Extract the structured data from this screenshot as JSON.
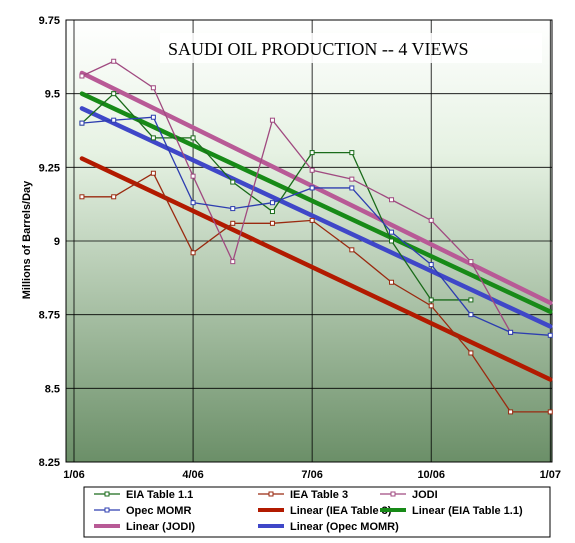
{
  "chart_data": {
    "type": "line",
    "title": "SAUDI OIL PRODUCTION -- 4 VIEWS",
    "ylabel": "Millions of Barrels/Day",
    "xlabel": "",
    "ylim": [
      8.25,
      9.75
    ],
    "yticks": [
      "8.25",
      "8.5",
      "8.75",
      "9",
      "9.25",
      "9.5",
      "9.75"
    ],
    "yticks_values": [
      8.25,
      8.5,
      8.75,
      9.0,
      9.25,
      9.5,
      9.75
    ],
    "xlim": [
      0,
      12
    ],
    "xticks": [
      "1/06",
      "4/06",
      "7/06",
      "10/06",
      "1/07"
    ],
    "xticks_values": [
      0,
      3,
      6,
      9,
      12
    ],
    "x": [
      0.2,
      1,
      2,
      3,
      4,
      5,
      6,
      7,
      8,
      9,
      10,
      11,
      12
    ],
    "grid": true,
    "legend_position": "bottom",
    "series": [
      {
        "name": "EIA Table 1.1",
        "kind": "data",
        "color": "#1a6b1a",
        "x": [
          0.2,
          1,
          2,
          3,
          4,
          5,
          6,
          7,
          8,
          9,
          10
        ],
        "values": [
          9.4,
          9.5,
          9.35,
          9.35,
          9.2,
          9.1,
          9.3,
          9.3,
          9.0,
          8.8,
          8.8
        ]
      },
      {
        "name": "IEA Table 3",
        "kind": "data",
        "color": "#9a2a10",
        "x": [
          0.2,
          1,
          2,
          3,
          4,
          5,
          6,
          7,
          8,
          9,
          10,
          11,
          12
        ],
        "values": [
          9.15,
          9.15,
          9.23,
          8.96,
          9.06,
          9.06,
          9.07,
          8.97,
          8.86,
          8.78,
          8.62,
          8.42,
          8.42
        ]
      },
      {
        "name": "JODI",
        "kind": "data",
        "color": "#a04a80",
        "x": [
          0.2,
          1,
          2,
          3,
          4,
          5,
          6,
          7,
          8,
          9,
          10,
          11
        ],
        "values": [
          9.56,
          9.61,
          9.52,
          9.22,
          8.93,
          9.41,
          9.24,
          9.21,
          9.14,
          9.07,
          8.93,
          8.69
        ]
      },
      {
        "name": "Opec MOMR",
        "kind": "data",
        "color": "#2d3db0",
        "x": [
          0.2,
          1,
          2,
          3,
          4,
          5,
          6,
          7,
          8,
          9,
          10,
          11,
          12
        ],
        "values": [
          9.4,
          9.41,
          9.42,
          9.13,
          9.11,
          9.13,
          9.18,
          9.18,
          9.03,
          8.92,
          8.75,
          8.69,
          8.68
        ]
      },
      {
        "name": "Linear (IEA Table 3)",
        "kind": "trend",
        "color": "#b21a00",
        "x": [
          0.2,
          12
        ],
        "values": [
          9.28,
          8.53
        ]
      },
      {
        "name": "Linear (EIA Table 1.1)",
        "kind": "trend",
        "color": "#178a17",
        "x": [
          0.2,
          12
        ],
        "values": [
          9.5,
          8.76
        ]
      },
      {
        "name": "Linear (JODI)",
        "kind": "trend",
        "color": "#b85a96",
        "x": [
          0.2,
          12
        ],
        "values": [
          9.57,
          8.79
        ]
      },
      {
        "name": "Linear (Opec MOMR)",
        "kind": "trend",
        "color": "#3f47c8",
        "x": [
          0.2,
          12
        ],
        "values": [
          9.45,
          8.71
        ]
      }
    ],
    "legend_order": [
      "EIA Table 1.1",
      "IEA Table 3",
      "JODI",
      "Opec MOMR",
      "Linear (IEA Table 3)",
      "Linear (EIA Table 1.1)",
      "Linear (JODI)",
      "Linear (Opec MOMR)"
    ]
  }
}
